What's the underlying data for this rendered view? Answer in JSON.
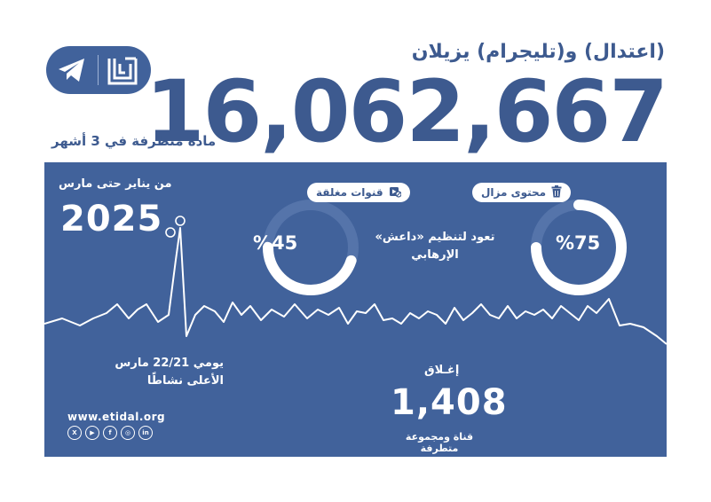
{
  "header": {
    "title": "(اعتدال) و(تليجرام) يزيلان",
    "big_number": "16,062,667",
    "subtitle": "مادة متطرفة في 3 أشهر"
  },
  "panel": {
    "date_range": "من يناير حتى مارس",
    "year": "2025",
    "removed_label": "محتوى مزال",
    "removed_pct": "%75",
    "removed_fraction": 0.75,
    "channels_label": "قنوات مغلقة",
    "channels_pct": "%45",
    "channels_fraction": 0.45,
    "affiliation": "تعود لتنظيم «داعش» الإرهابي",
    "peak_line1": "يومي 22/21 مارس",
    "peak_line2": "الأعلى نشاطًا",
    "closure_label": "إغـلاق",
    "closure_number": "1,408",
    "closure_caption": "قناة ومجموعة متطرفة",
    "website": "www.etidal.org",
    "social_icons": [
      "x-icon",
      "youtube-icon",
      "facebook-icon",
      "instagram-icon",
      "linkedin-icon"
    ],
    "social_glyphs": [
      "X",
      "▶",
      "f",
      "◎",
      "in"
    ]
  },
  "colors": {
    "brand_blue": "#41629b",
    "heading_blue": "#3d5a8f",
    "white": "#ffffff"
  }
}
